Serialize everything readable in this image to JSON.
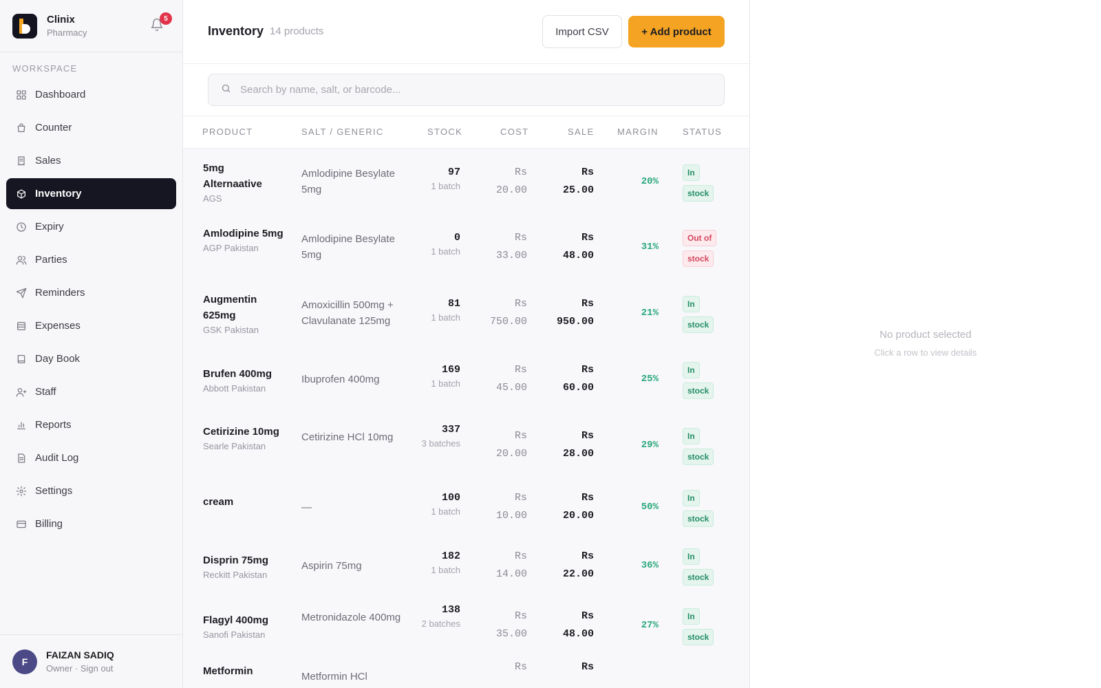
{
  "brand": {
    "name": "Clinix",
    "subtitle": "Pharmacy",
    "notifications": "5"
  },
  "sidebar": {
    "section": "WORKSPACE",
    "items": [
      {
        "label": "Dashboard",
        "icon": "grid-icon"
      },
      {
        "label": "Counter",
        "icon": "bag-icon"
      },
      {
        "label": "Sales",
        "icon": "receipt-icon"
      },
      {
        "label": "Inventory",
        "icon": "box-icon"
      },
      {
        "label": "Expiry",
        "icon": "clock-icon"
      },
      {
        "label": "Parties",
        "icon": "users-icon"
      },
      {
        "label": "Reminders",
        "icon": "send-icon"
      },
      {
        "label": "Expenses",
        "icon": "wallet-icon"
      },
      {
        "label": "Day Book",
        "icon": "book-icon"
      },
      {
        "label": "Staff",
        "icon": "staff-icon"
      },
      {
        "label": "Reports",
        "icon": "bar-chart-icon"
      },
      {
        "label": "Audit Log",
        "icon": "document-icon"
      },
      {
        "label": "Settings",
        "icon": "gear-icon"
      },
      {
        "label": "Billing",
        "icon": "card-icon"
      }
    ],
    "active": "Inventory"
  },
  "user": {
    "initial": "F",
    "name": "FAIZAN SADIQ",
    "role_line": "Owner · Sign out"
  },
  "header": {
    "title": "Inventory",
    "count": "14 products",
    "import_label": "Import CSV",
    "add_label": "+ Add product"
  },
  "search": {
    "placeholder": "Search by name, salt, or barcode..."
  },
  "table": {
    "columns": [
      "PRODUCT",
      "SALT / GENERIC",
      "STOCK",
      "COST",
      "SALE",
      "MARGIN",
      "STATUS"
    ],
    "rows": [
      {
        "name": "5mg Alternaative",
        "maker": "AGS",
        "salt": "Amlodipine Besylate 5mg",
        "stock": "97",
        "batches": "1 batch",
        "cost": "Rs 20.00",
        "sale": "Rs 25.00",
        "margin": "20%",
        "status": [
          "In",
          "stock"
        ],
        "status_type": "in"
      },
      {
        "name": "Amlodipine 5mg",
        "maker": "AGP Pakistan",
        "salt": "Amlodipine Besylate 5mg",
        "stock": "0",
        "batches": "1 batch",
        "cost": "Rs 33.00",
        "sale": "Rs 48.00",
        "margin": "31%",
        "status": [
          "Out of",
          "stock"
        ],
        "status_type": "out"
      },
      {
        "name": "Augmentin 625mg",
        "maker": "GSK Pakistan",
        "salt": "Amoxicillin 500mg + Clavulanate 125mg",
        "stock": "81",
        "batches": "1 batch",
        "cost": "Rs 750.00",
        "sale": "Rs 950.00",
        "margin": "21%",
        "status": [
          "In",
          "stock"
        ],
        "status_type": "in"
      },
      {
        "name": "Brufen 400mg",
        "maker": "Abbott Pakistan",
        "salt": "Ibuprofen 400mg",
        "stock": "169",
        "batches": "1 batch",
        "cost": "Rs 45.00",
        "sale": "Rs 60.00",
        "margin": "25%",
        "status": [
          "In",
          "stock"
        ],
        "status_type": "in"
      },
      {
        "name": "Cetirizine 10mg",
        "maker": "Searle Pakistan",
        "salt": "Cetirizine HCl 10mg",
        "stock": "337",
        "batches": "3 batches",
        "cost": "Rs 20.00",
        "sale": "Rs 28.00",
        "margin": "29%",
        "status": [
          "In",
          "stock"
        ],
        "status_type": "in"
      },
      {
        "name": "cream",
        "maker": "",
        "salt": "—",
        "stock": "100",
        "batches": "1 batch",
        "cost": "Rs 10.00",
        "sale": "Rs 20.00",
        "margin": "50%",
        "status": [
          "In",
          "stock"
        ],
        "status_type": "in"
      },
      {
        "name": "Disprin 75mg",
        "maker": "Reckitt Pakistan",
        "salt": "Aspirin 75mg",
        "stock": "182",
        "batches": "1 batch",
        "cost": "Rs 14.00",
        "sale": "Rs 22.00",
        "margin": "36%",
        "status": [
          "In",
          "stock"
        ],
        "status_type": "in"
      },
      {
        "name": "Flagyl 400mg",
        "maker": "Sanofi Pakistan",
        "salt": "Metronidazole 400mg",
        "stock": "138",
        "batches": "2 batches",
        "cost": "Rs 35.00",
        "sale": "Rs 48.00",
        "margin": "27%",
        "status": [
          "In",
          "stock"
        ],
        "status_type": "in"
      },
      {
        "name": "Metformin",
        "maker": "",
        "salt": "Metformin HCl",
        "stock": "",
        "batches": "",
        "cost": "Rs",
        "sale": "Rs",
        "margin": "",
        "status": [
          "",
          ""
        ],
        "status_type": "in"
      }
    ]
  },
  "detail": {
    "empty_title": "No product selected",
    "empty_hint": "Click a row to view details"
  },
  "colors": {
    "accent": "#f4a322",
    "active_nav": "#161622",
    "in_stock": "#258d66",
    "out_of_stock": "#d3485e",
    "margin": "#2aa87a"
  }
}
